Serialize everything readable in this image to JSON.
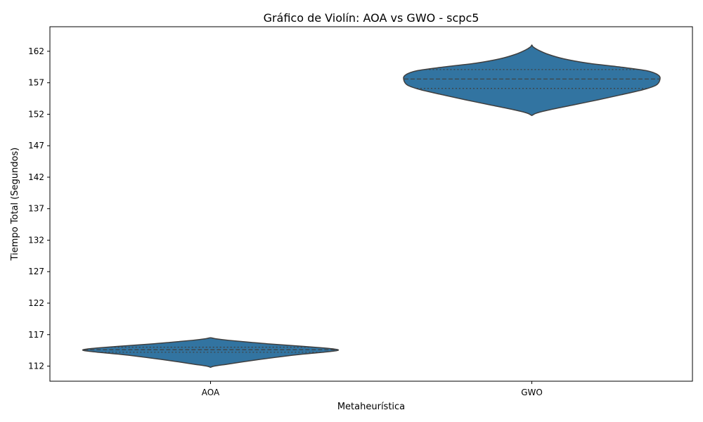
{
  "chart_data": {
    "type": "violin",
    "title": "Gráfico de Violín: AOA vs GWO - scpc5",
    "xlabel": "Metaheurística",
    "ylabel": "Tiempo Total (Segundos)",
    "categories": [
      "AOA",
      "GWO"
    ],
    "yticks": [
      112,
      117,
      122,
      127,
      132,
      137,
      142,
      147,
      152,
      157,
      162
    ],
    "ylim": [
      109.6,
      165.9
    ],
    "grid": false,
    "inner": "quartile",
    "colors": {
      "fill": "#3274a1",
      "edge": "#3f3f3f",
      "axis": "#000000"
    },
    "series": [
      {
        "category": "AOA",
        "min": 111.8,
        "max": 116.5,
        "q1": 114.2,
        "median": 114.6,
        "q3": 115.0,
        "density": [
          [
            111.8,
            0.0
          ],
          [
            112.0,
            0.03
          ],
          [
            112.3,
            0.13
          ],
          [
            112.7,
            0.26
          ],
          [
            113.1,
            0.4
          ],
          [
            113.5,
            0.55
          ],
          [
            113.9,
            0.72
          ],
          [
            114.2,
            0.88
          ],
          [
            114.4,
            0.97
          ],
          [
            114.55,
            1.0
          ],
          [
            114.7,
            0.97
          ],
          [
            114.9,
            0.87
          ],
          [
            115.2,
            0.68
          ],
          [
            115.5,
            0.47
          ],
          [
            115.8,
            0.3
          ],
          [
            116.1,
            0.14
          ],
          [
            116.35,
            0.04
          ],
          [
            116.5,
            0.0
          ]
        ]
      },
      {
        "category": "GWO",
        "min": 151.8,
        "max": 163.0,
        "q1": 156.1,
        "median": 157.6,
        "q3": 159.1,
        "density": [
          [
            151.8,
            0.0
          ],
          [
            152.2,
            0.04
          ],
          [
            152.8,
            0.16
          ],
          [
            153.5,
            0.33
          ],
          [
            154.3,
            0.52
          ],
          [
            155.1,
            0.7
          ],
          [
            155.9,
            0.87
          ],
          [
            156.6,
            0.97
          ],
          [
            157.4,
            1.0
          ],
          [
            158.2,
            0.99
          ],
          [
            158.9,
            0.9
          ],
          [
            159.5,
            0.69
          ],
          [
            160.1,
            0.44
          ],
          [
            160.8,
            0.25
          ],
          [
            161.5,
            0.13
          ],
          [
            162.2,
            0.05
          ],
          [
            162.7,
            0.01
          ],
          [
            163.0,
            0.0
          ]
        ]
      }
    ]
  }
}
